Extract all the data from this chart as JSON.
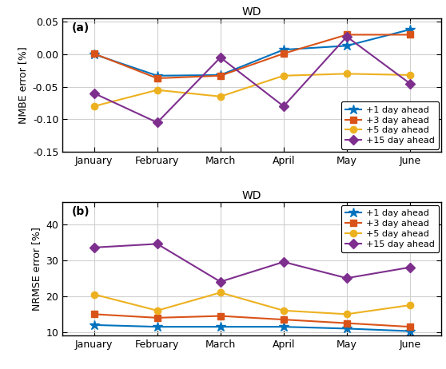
{
  "months": [
    "January",
    "February",
    "March",
    "April",
    "May",
    "June"
  ],
  "title_a": "WD",
  "title_b": "WD",
  "ylabel_a": "NMBE error [%]",
  "ylabel_b": "NRMSE error [%]",
  "panel_a_label": "(a)",
  "panel_b_label": "(b)",
  "nmbe": {
    "+1 day ahead": [
      0.0,
      -0.033,
      -0.032,
      0.007,
      0.013,
      0.038
    ],
    "+3 day ahead": [
      0.001,
      -0.037,
      -0.033,
      0.001,
      0.03,
      0.03
    ],
    "+5 day ahead": [
      -0.08,
      -0.055,
      -0.065,
      -0.033,
      -0.03,
      -0.032
    ],
    "+15 day ahead": [
      -0.06,
      -0.105,
      -0.005,
      -0.08,
      0.027,
      -0.045
    ]
  },
  "nrmse": {
    "+1 day ahead": [
      12.0,
      11.5,
      11.5,
      11.5,
      11.0,
      10.3
    ],
    "+3 day ahead": [
      15.0,
      14.0,
      14.5,
      13.5,
      12.5,
      11.5
    ],
    "+5 day ahead": [
      20.5,
      16.0,
      21.0,
      16.0,
      15.0,
      17.5
    ],
    "+15 day ahead": [
      33.5,
      34.5,
      24.0,
      29.5,
      25.0,
      28.0
    ]
  },
  "colors": {
    "+1 day ahead": "#0072BD",
    "+3 day ahead": "#D95319",
    "+5 day ahead": "#EDB120",
    "+15 day ahead": "#7E2F8E"
  },
  "markers": {
    "+1 day ahead": "*",
    "+3 day ahead": "s",
    "+5 day ahead": "o",
    "+15 day ahead": "D"
  },
  "ylim_a": [
    -0.15,
    0.055
  ],
  "yticks_a": [
    -0.15,
    -0.1,
    -0.05,
    0.0,
    0.05
  ],
  "ylim_b": [
    9.0,
    46.0
  ],
  "yticks_b": [
    10,
    20,
    30,
    40
  ],
  "linewidth": 1.5,
  "markersize_star": 9,
  "markersize": 6,
  "fontsize_title": 10,
  "fontsize_label": 9,
  "fontsize_tick": 9,
  "fontsize_legend": 8,
  "fontsize_panel": 10
}
